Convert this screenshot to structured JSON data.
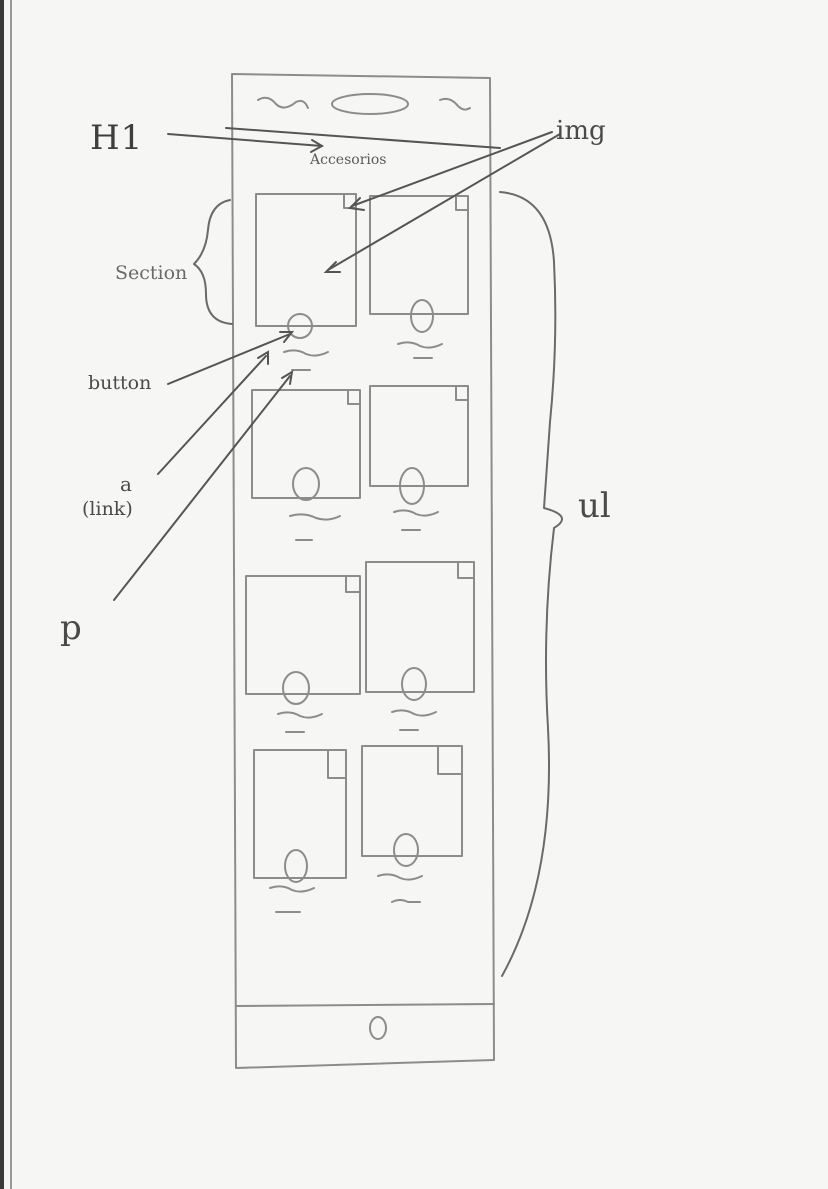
{
  "annotations": {
    "h1": "H1",
    "img": "img",
    "section": "Section",
    "button": "button",
    "a": "a",
    "link": "(link)",
    "ul": "ul",
    "p": "p"
  },
  "phone": {
    "page_title": "Accesorios"
  },
  "products": [
    {
      "row": 1,
      "col": 1
    },
    {
      "row": 1,
      "col": 2
    },
    {
      "row": 2,
      "col": 1
    },
    {
      "row": 2,
      "col": 2
    },
    {
      "row": 3,
      "col": 1
    },
    {
      "row": 3,
      "col": 2
    },
    {
      "row": 4,
      "col": 1
    },
    {
      "row": 4,
      "col": 2
    }
  ],
  "colors": {
    "paper": "#f6f6f4",
    "pencil": "#8c8c8c",
    "ink": "#4a4a4a"
  }
}
